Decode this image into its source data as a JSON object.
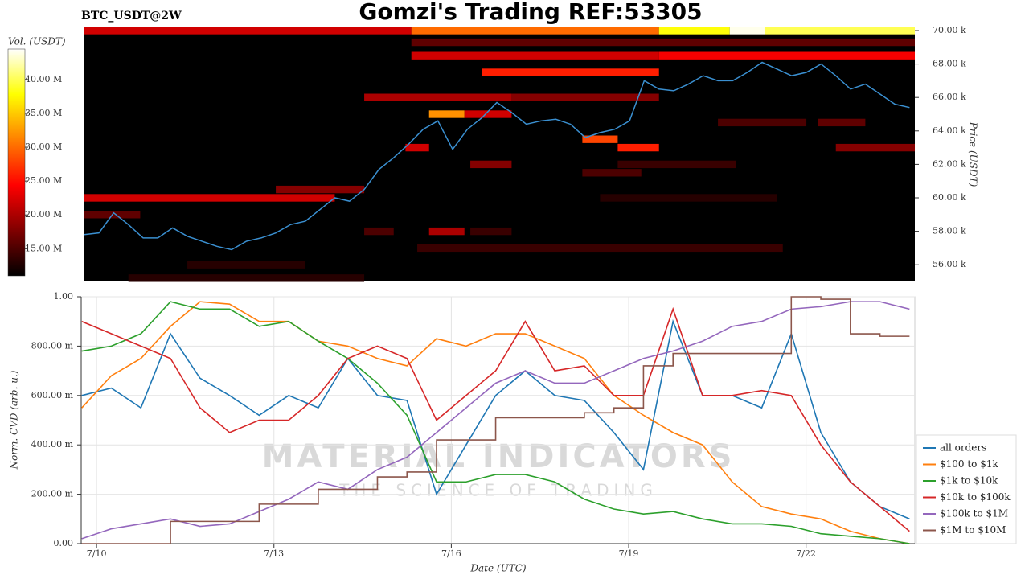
{
  "chart_data": [
    {
      "type": "heatmap",
      "title": "Gomzi's Trading REF:53305",
      "subtitle": "BTC_USDT@2W",
      "y_label": "Price (USDT)",
      "colorbar_label": "Vol. (USDT)",
      "xlim": [
        9.74,
        23.84
      ],
      "ylim": [
        55000,
        70240
      ],
      "yticks": [
        {
          "value": 56000,
          "label": "56.00 k"
        },
        {
          "value": 58000,
          "label": "58.00 k"
        },
        {
          "value": 60000,
          "label": "60.00 k"
        },
        {
          "value": 62000,
          "label": "62.00 k"
        },
        {
          "value": 64000,
          "label": "64.00 k"
        },
        {
          "value": 66000,
          "label": "66.00 k"
        },
        {
          "value": 68000,
          "label": "68.00 k"
        },
        {
          "value": 70000,
          "label": "70.00 k"
        }
      ],
      "clim": [
        11000000,
        44500000
      ],
      "cticks": [
        {
          "value": 15000000,
          "label": "15.00 M"
        },
        {
          "value": 20000000,
          "label": "20.00 M"
        },
        {
          "value": 25000000,
          "label": "25.00 M"
        },
        {
          "value": 30000000,
          "label": "30.00 M"
        },
        {
          "value": 35000000,
          "label": "35.00 M"
        },
        {
          "value": 40000000,
          "label": "40.00 M"
        }
      ],
      "cells": {
        "x0": [
          9.74,
          15.3,
          19.5,
          20.7,
          21.3,
          15.3,
          15.3,
          19.5,
          16.5,
          14.5,
          17,
          15.6,
          16.2,
          20.5,
          22.2,
          18.2,
          15.2,
          18.8,
          22.5,
          16.3,
          18.8,
          18.2,
          13,
          9.74,
          18.5,
          9.74,
          14.5,
          15.6,
          16.3,
          15.4,
          11.5,
          10.5
        ],
        "x1": [
          15.3,
          19.5,
          20.7,
          21.3,
          23.84,
          23.84,
          19.5,
          23.84,
          19.5,
          17,
          19.5,
          16.2,
          17,
          22,
          23,
          18.8,
          15.6,
          19.5,
          23.84,
          17,
          20.8,
          19.2,
          14.5,
          14,
          21.5,
          10.7,
          15,
          16.2,
          17,
          21.6,
          13.5,
          14.5
        ],
        "y": [
          70000,
          70000,
          70000,
          70000,
          70000,
          69300,
          68500,
          68500,
          67500,
          66000,
          66000,
          65000,
          65000,
          64500,
          64500,
          63500,
          63000,
          63000,
          63000,
          62000,
          62000,
          61500,
          60500,
          60000,
          60000,
          59000,
          58000,
          58000,
          58000,
          57000,
          56000,
          55200
        ],
        "values": [
          22000000,
          30000000,
          38000000,
          44000000,
          40000000,
          16000000,
          22000000,
          24000000,
          26000000,
          20000000,
          18000000,
          32000000,
          22000000,
          15000000,
          16000000,
          28000000,
          22000000,
          26000000,
          18000000,
          18000000,
          14000000,
          15000000,
          18000000,
          22000000,
          13000000,
          16000000,
          15000000,
          20000000,
          14000000,
          14000000,
          13000000,
          13000000
        ]
      },
      "price": {
        "color": "#3a8fd0",
        "x": [
          9.75,
          10,
          10.25,
          10.5,
          10.75,
          11,
          11.25,
          11.5,
          11.75,
          12,
          12.25,
          12.5,
          12.75,
          13,
          13.25,
          13.5,
          13.75,
          14,
          14.25,
          14.5,
          14.75,
          15,
          15.25,
          15.5,
          15.75,
          16,
          16.25,
          16.5,
          16.75,
          17,
          17.25,
          17.5,
          17.75,
          18,
          18.25,
          18.5,
          18.75,
          19,
          19.25,
          19.5,
          19.75,
          20,
          20.25,
          20.5,
          20.75,
          21,
          21.25,
          21.5,
          21.75,
          22,
          22.25,
          22.5,
          22.75,
          23,
          23.25,
          23.5,
          23.75
        ],
        "values": [
          57800,
          57900,
          59100,
          58400,
          57600,
          57600,
          58200,
          57700,
          57400,
          57100,
          56900,
          57400,
          57600,
          57900,
          58400,
          58600,
          59300,
          60000,
          59800,
          60500,
          61700,
          62400,
          63200,
          64100,
          64600,
          62900,
          64100,
          64800,
          65700,
          65100,
          64400,
          64600,
          64700,
          64400,
          63600,
          63900,
          64100,
          64600,
          67000,
          66500,
          66400,
          66800,
          67300,
          67000,
          67000,
          67500,
          68100,
          67700,
          67300,
          67500,
          68000,
          67300,
          66500,
          66800,
          66200,
          65600,
          65400
        ]
      }
    },
    {
      "type": "line",
      "x_label": "Date (UTC)",
      "y_label": "Norm. CVD (arb. u.)",
      "grid": true,
      "legend": "lower right",
      "annotations": [
        "MATERIAL INDICATORS",
        "THE SCIENCE OF TRADING"
      ],
      "xlim": [
        9.74,
        23.84
      ],
      "ylim": [
        0,
        1
      ],
      "xticks": [
        {
          "value": 10,
          "label": "7/10"
        },
        {
          "value": 13,
          "label": "7/13"
        },
        {
          "value": 16,
          "label": "7/16"
        },
        {
          "value": 19,
          "label": "7/19"
        },
        {
          "value": 22,
          "label": "7/22"
        }
      ],
      "yticks": [
        {
          "value": 0,
          "label": "0.00"
        },
        {
          "value": 0.2,
          "label": "200.00 m"
        },
        {
          "value": 0.4,
          "label": "400.00 m"
        },
        {
          "value": 0.6,
          "label": "600.00 m"
        },
        {
          "value": 0.8,
          "label": "800.00 m"
        },
        {
          "value": 1,
          "label": "1.00"
        }
      ],
      "x": [
        9.75,
        10.25,
        10.75,
        11.25,
        11.75,
        12.25,
        12.75,
        13.25,
        13.75,
        14.25,
        14.75,
        15.25,
        15.75,
        16.25,
        16.75,
        17.25,
        17.75,
        18.25,
        18.75,
        19.25,
        19.75,
        20.25,
        20.75,
        21.25,
        21.75,
        22.25,
        22.75,
        23.25,
        23.75
      ],
      "series": [
        {
          "name": "all orders",
          "color": "#1f77b4",
          "values": [
            0.6,
            0.63,
            0.55,
            0.85,
            0.67,
            0.6,
            0.52,
            0.6,
            0.55,
            0.75,
            0.6,
            0.58,
            0.2,
            0.4,
            0.6,
            0.7,
            0.6,
            0.58,
            0.45,
            0.3,
            0.9,
            0.6,
            0.6,
            0.55,
            0.85,
            0.45,
            0.25,
            0.15,
            0.1
          ]
        },
        {
          "name": "$100 to $1k",
          "color": "#ff7f0e",
          "values": [
            0.55,
            0.68,
            0.75,
            0.88,
            0.98,
            0.97,
            0.9,
            0.9,
            0.82,
            0.8,
            0.75,
            0.72,
            0.83,
            0.8,
            0.85,
            0.85,
            0.8,
            0.75,
            0.6,
            0.52,
            0.45,
            0.4,
            0.25,
            0.15,
            0.12,
            0.1,
            0.05,
            0.02,
            0
          ]
        },
        {
          "name": "$1k to $10k",
          "color": "#2ca02c",
          "values": [
            0.78,
            0.8,
            0.85,
            0.98,
            0.95,
            0.95,
            0.88,
            0.9,
            0.82,
            0.75,
            0.65,
            0.52,
            0.25,
            0.25,
            0.28,
            0.28,
            0.25,
            0.18,
            0.14,
            0.12,
            0.13,
            0.1,
            0.08,
            0.08,
            0.07,
            0.04,
            0.03,
            0.02,
            0
          ]
        },
        {
          "name": "$10k to $100k",
          "color": "#d62728",
          "values": [
            0.9,
            0.85,
            0.8,
            0.75,
            0.55,
            0.45,
            0.5,
            0.5,
            0.6,
            0.75,
            0.8,
            0.75,
            0.5,
            0.6,
            0.7,
            0.9,
            0.7,
            0.72,
            0.6,
            0.6,
            0.95,
            0.6,
            0.6,
            0.62,
            0.6,
            0.4,
            0.25,
            0.15,
            0.05
          ]
        },
        {
          "name": "$100k to $1M",
          "color": "#9467bd",
          "values": [
            0.02,
            0.06,
            0.08,
            0.1,
            0.07,
            0.08,
            0.13,
            0.18,
            0.25,
            0.22,
            0.3,
            0.35,
            0.45,
            0.55,
            0.65,
            0.7,
            0.65,
            0.65,
            0.7,
            0.75,
            0.78,
            0.82,
            0.88,
            0.9,
            0.95,
            0.96,
            0.98,
            0.98,
            0.95
          ]
        },
        {
          "name": "$1M to $10M",
          "color": "#8c564b",
          "step": true,
          "values": [
            0,
            0,
            0,
            0.09,
            0.09,
            0.09,
            0.16,
            0.16,
            0.22,
            0.22,
            0.27,
            0.29,
            0.42,
            0.42,
            0.51,
            0.51,
            0.51,
            0.53,
            0.55,
            0.72,
            0.77,
            0.77,
            0.77,
            0.77,
            1,
            0.99,
            0.85,
            0.84,
            0.84
          ]
        }
      ]
    }
  ]
}
